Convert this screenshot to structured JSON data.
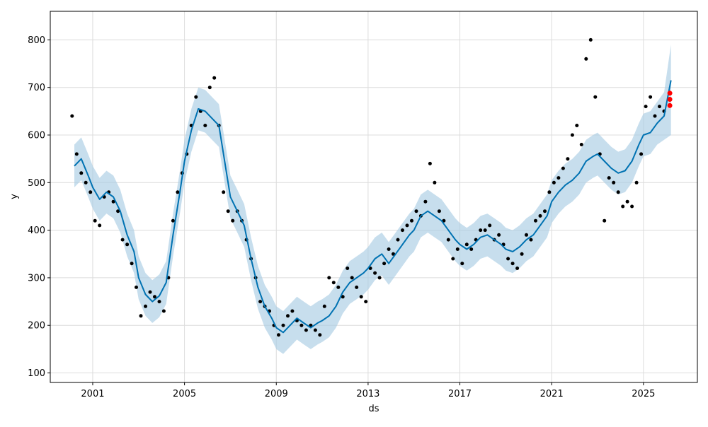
{
  "chart_data": {
    "type": "line",
    "xlabel": "ds",
    "ylabel": "y",
    "x_ticks": [
      "2001",
      "2005",
      "2009",
      "2013",
      "2017",
      "2021",
      "2025"
    ],
    "y_ticks": [
      100,
      200,
      300,
      400,
      500,
      600,
      700,
      800
    ],
    "xlim": [
      1999.15,
      2027.35
    ],
    "ylim": [
      80,
      860
    ],
    "grid": true,
    "colors": {
      "forecast": "#0072B2",
      "interval": "#a9cce3",
      "observed": "#000000",
      "highlight": "#ff0000"
    },
    "series": [
      {
        "role": "forecast",
        "x": [
          2000.2,
          2000.5,
          2000.8,
          2001.0,
          2001.3,
          2001.6,
          2001.9,
          2002.2,
          2002.5,
          2002.8,
          2003.0,
          2003.3,
          2003.6,
          2003.9,
          2004.2,
          2004.5,
          2004.8,
          2005.0,
          2005.3,
          2005.6,
          2005.9,
          2006.2,
          2006.5,
          2006.8,
          2007.0,
          2007.3,
          2007.6,
          2007.9,
          2008.2,
          2008.5,
          2008.8,
          2009.0,
          2009.3,
          2009.6,
          2009.9,
          2010.2,
          2010.5,
          2010.8,
          2011.0,
          2011.3,
          2011.6,
          2011.9,
          2012.2,
          2012.5,
          2012.8,
          2013.0,
          2013.3,
          2013.6,
          2013.9,
          2014.2,
          2014.5,
          2014.8,
          2015.0,
          2015.3,
          2015.6,
          2015.9,
          2016.2,
          2016.5,
          2016.8,
          2017.0,
          2017.3,
          2017.6,
          2017.9,
          2018.2,
          2018.5,
          2018.8,
          2019.0,
          2019.3,
          2019.6,
          2019.9,
          2020.2,
          2020.5,
          2020.8,
          2021.0,
          2021.3,
          2021.6,
          2021.9,
          2022.2,
          2022.5,
          2022.8,
          2023.0,
          2023.3,
          2023.6,
          2023.9,
          2024.2,
          2024.5,
          2024.8,
          2025.0,
          2025.3,
          2025.6,
          2025.9,
          2026.2
        ],
        "y": [
          535,
          550,
          515,
          490,
          465,
          480,
          470,
          440,
          390,
          355,
          300,
          265,
          250,
          262,
          290,
          390,
          480,
          545,
          610,
          655,
          650,
          635,
          620,
          530,
          470,
          440,
          410,
          340,
          280,
          240,
          215,
          195,
          185,
          200,
          215,
          205,
          195,
          205,
          210,
          220,
          240,
          270,
          290,
          300,
          310,
          320,
          340,
          350,
          330,
          350,
          370,
          390,
          400,
          430,
          440,
          430,
          420,
          400,
          380,
          370,
          360,
          370,
          385,
          390,
          380,
          370,
          360,
          355,
          365,
          380,
          390,
          410,
          430,
          460,
          480,
          495,
          505,
          520,
          545,
          555,
          560,
          545,
          530,
          520,
          525,
          545,
          580,
          600,
          605,
          625,
          640,
          715
        ]
      },
      {
        "role": "interval",
        "x": [
          2000.2,
          2000.5,
          2000.8,
          2001.0,
          2001.3,
          2001.6,
          2001.9,
          2002.2,
          2002.5,
          2002.8,
          2003.0,
          2003.3,
          2003.6,
          2003.9,
          2004.2,
          2004.5,
          2004.8,
          2005.0,
          2005.3,
          2005.6,
          2005.9,
          2006.2,
          2006.5,
          2006.8,
          2007.0,
          2007.3,
          2007.6,
          2007.9,
          2008.2,
          2008.5,
          2008.8,
          2009.0,
          2009.3,
          2009.6,
          2009.9,
          2010.2,
          2010.5,
          2010.8,
          2011.0,
          2011.3,
          2011.6,
          2011.9,
          2012.2,
          2012.5,
          2012.8,
          2013.0,
          2013.3,
          2013.6,
          2013.9,
          2014.2,
          2014.5,
          2014.8,
          2015.0,
          2015.3,
          2015.6,
          2015.9,
          2016.2,
          2016.5,
          2016.8,
          2017.0,
          2017.3,
          2017.6,
          2017.9,
          2018.2,
          2018.5,
          2018.8,
          2019.0,
          2019.3,
          2019.6,
          2019.9,
          2020.2,
          2020.5,
          2020.8,
          2021.0,
          2021.3,
          2021.6,
          2021.9,
          2022.2,
          2022.5,
          2022.8,
          2023.0,
          2023.3,
          2023.6,
          2023.9,
          2024.2,
          2024.5,
          2024.8,
          2025.0,
          2025.3,
          2025.6,
          2025.9,
          2026.2
        ],
        "lower": [
          490,
          505,
          470,
          445,
          420,
          435,
          425,
          395,
          345,
          310,
          255,
          220,
          205,
          217,
          245,
          345,
          435,
          500,
          565,
          610,
          605,
          590,
          575,
          485,
          425,
          395,
          365,
          295,
          235,
          195,
          170,
          150,
          140,
          155,
          170,
          160,
          150,
          160,
          165,
          175,
          195,
          225,
          245,
          255,
          265,
          275,
          295,
          305,
          285,
          305,
          325,
          345,
          355,
          385,
          395,
          385,
          375,
          355,
          335,
          325,
          315,
          325,
          340,
          345,
          335,
          325,
          315,
          310,
          320,
          335,
          345,
          365,
          385,
          415,
          435,
          450,
          460,
          475,
          500,
          510,
          515,
          500,
          485,
          475,
          480,
          500,
          535,
          555,
          560,
          580,
          590,
          600
        ],
        "upper": [
          580,
          595,
          560,
          535,
          510,
          525,
          515,
          485,
          435,
          400,
          345,
          310,
          295,
          307,
          335,
          435,
          525,
          590,
          655,
          700,
          695,
          680,
          665,
          575,
          515,
          485,
          455,
          385,
          325,
          285,
          260,
          240,
          230,
          245,
          260,
          250,
          240,
          250,
          255,
          265,
          285,
          315,
          335,
          345,
          355,
          365,
          385,
          395,
          375,
          395,
          415,
          435,
          445,
          475,
          485,
          475,
          465,
          445,
          425,
          415,
          405,
          415,
          430,
          435,
          425,
          415,
          405,
          400,
          410,
          425,
          435,
          455,
          475,
          505,
          525,
          540,
          550,
          565,
          590,
          600,
          605,
          590,
          575,
          565,
          570,
          590,
          625,
          645,
          650,
          670,
          690,
          790
        ]
      },
      {
        "role": "observed",
        "x": [
          2000.1,
          2000.3,
          2000.5,
          2000.7,
          2000.9,
          2001.1,
          2001.3,
          2001.5,
          2001.7,
          2001.9,
          2002.1,
          2002.3,
          2002.5,
          2002.7,
          2002.9,
          2003.1,
          2003.3,
          2003.5,
          2003.7,
          2003.9,
          2004.1,
          2004.3,
          2004.5,
          2004.7,
          2004.9,
          2005.1,
          2005.3,
          2005.5,
          2005.7,
          2005.9,
          2006.1,
          2006.3,
          2006.5,
          2006.7,
          2006.9,
          2007.1,
          2007.3,
          2007.5,
          2007.7,
          2007.9,
          2008.1,
          2008.3,
          2008.5,
          2008.7,
          2008.9,
          2009.1,
          2009.3,
          2009.5,
          2009.7,
          2009.9,
          2010.1,
          2010.3,
          2010.5,
          2010.7,
          2010.9,
          2011.1,
          2011.3,
          2011.5,
          2011.7,
          2011.9,
          2012.1,
          2012.3,
          2012.5,
          2012.7,
          2012.9,
          2013.1,
          2013.3,
          2013.5,
          2013.7,
          2013.9,
          2014.1,
          2014.3,
          2014.5,
          2014.7,
          2014.9,
          2015.1,
          2015.3,
          2015.5,
          2015.7,
          2015.9,
          2016.1,
          2016.3,
          2016.5,
          2016.7,
          2016.9,
          2017.1,
          2017.3,
          2017.5,
          2017.7,
          2017.9,
          2018.1,
          2018.3,
          2018.5,
          2018.7,
          2018.9,
          2019.1,
          2019.3,
          2019.5,
          2019.7,
          2019.9,
          2020.1,
          2020.3,
          2020.5,
          2020.7,
          2020.9,
          2021.1,
          2021.3,
          2021.5,
          2021.7,
          2021.9,
          2022.1,
          2022.3,
          2022.5,
          2022.7,
          2022.9,
          2023.1,
          2023.3,
          2023.5,
          2023.7,
          2023.9,
          2024.1,
          2024.3,
          2024.5,
          2024.7,
          2024.9,
          2025.1,
          2025.3,
          2025.5,
          2025.7,
          2025.9
        ],
        "y": [
          640,
          560,
          520,
          500,
          480,
          420,
          410,
          470,
          480,
          460,
          440,
          380,
          370,
          330,
          280,
          220,
          240,
          270,
          260,
          250,
          230,
          300,
          420,
          480,
          520,
          560,
          620,
          680,
          650,
          620,
          700,
          720,
          620,
          480,
          440,
          420,
          440,
          420,
          380,
          340,
          300,
          250,
          240,
          230,
          200,
          180,
          200,
          220,
          230,
          210,
          200,
          190,
          200,
          190,
          180,
          240,
          300,
          290,
          280,
          260,
          320,
          300,
          280,
          260,
          250,
          320,
          310,
          300,
          330,
          360,
          350,
          380,
          400,
          410,
          420,
          440,
          430,
          460,
          540,
          500,
          440,
          420,
          380,
          340,
          360,
          330,
          370,
          360,
          380,
          400,
          400,
          410,
          380,
          390,
          370,
          340,
          330,
          320,
          350,
          390,
          380,
          420,
          430,
          440,
          480,
          500,
          510,
          530,
          550,
          600,
          620,
          580,
          760,
          800,
          680,
          560,
          420,
          510,
          500,
          480,
          450,
          460,
          450,
          500,
          560,
          660,
          680,
          640,
          660,
          650
        ]
      },
      {
        "role": "highlight",
        "x": [
          2026.15,
          2026.15,
          2026.15
        ],
        "y": [
          688,
          675,
          662
        ]
      }
    ]
  }
}
